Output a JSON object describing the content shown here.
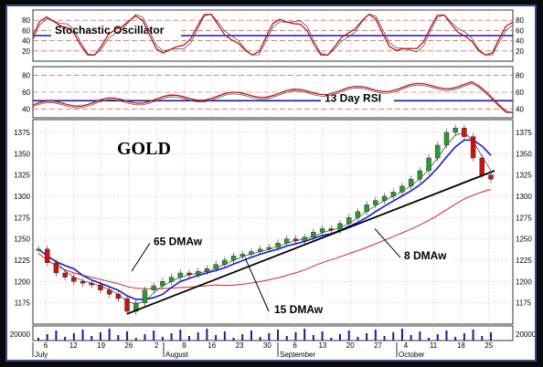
{
  "chart_data": {
    "type": "candlestick",
    "title": "GOLD",
    "panels": {
      "stochastic": {
        "label": "Stochastic Oscillator",
        "y_ticks": [
          "80",
          "60",
          "40",
          "20"
        ],
        "reference_value": 50
      },
      "rsi": {
        "label": "13 Day RSI",
        "y_ticks": [
          "80",
          "60",
          "40"
        ],
        "reference_value": 50
      },
      "price": {
        "y_ticks": [
          "1375",
          "1350",
          "1325",
          "1300",
          "1275",
          "1250",
          "1225",
          "1200",
          "1175"
        ],
        "ylim": [
          1150,
          1390
        ],
        "annotations": [
          "65 DMAw",
          "15 DMAw",
          "8 DMAw"
        ]
      },
      "volume": {
        "y_tick": "20000"
      }
    },
    "x_day_labels": [
      "6",
      "12",
      "19",
      "26",
      "2",
      "9",
      "16",
      "23",
      "30",
      "6",
      "13",
      "20",
      "27",
      "4",
      "11",
      "18",
      "25"
    ],
    "x_month_labels": [
      "July",
      "August",
      "September",
      "October"
    ],
    "price_series": [
      1238,
      1222,
      1210,
      1205,
      1200,
      1198,
      1196,
      1190,
      1185,
      1180,
      1165,
      1175,
      1190,
      1195,
      1200,
      1205,
      1210,
      1208,
      1212,
      1215,
      1220,
      1225,
      1230,
      1232,
      1235,
      1238,
      1240,
      1245,
      1250,
      1248,
      1252,
      1258,
      1262,
      1260,
      1268,
      1275,
      1282,
      1290,
      1295,
      1300,
      1305,
      1312,
      1320,
      1330,
      1345,
      1360,
      1375,
      1380,
      1370,
      1345,
      1325,
      1320
    ]
  }
}
